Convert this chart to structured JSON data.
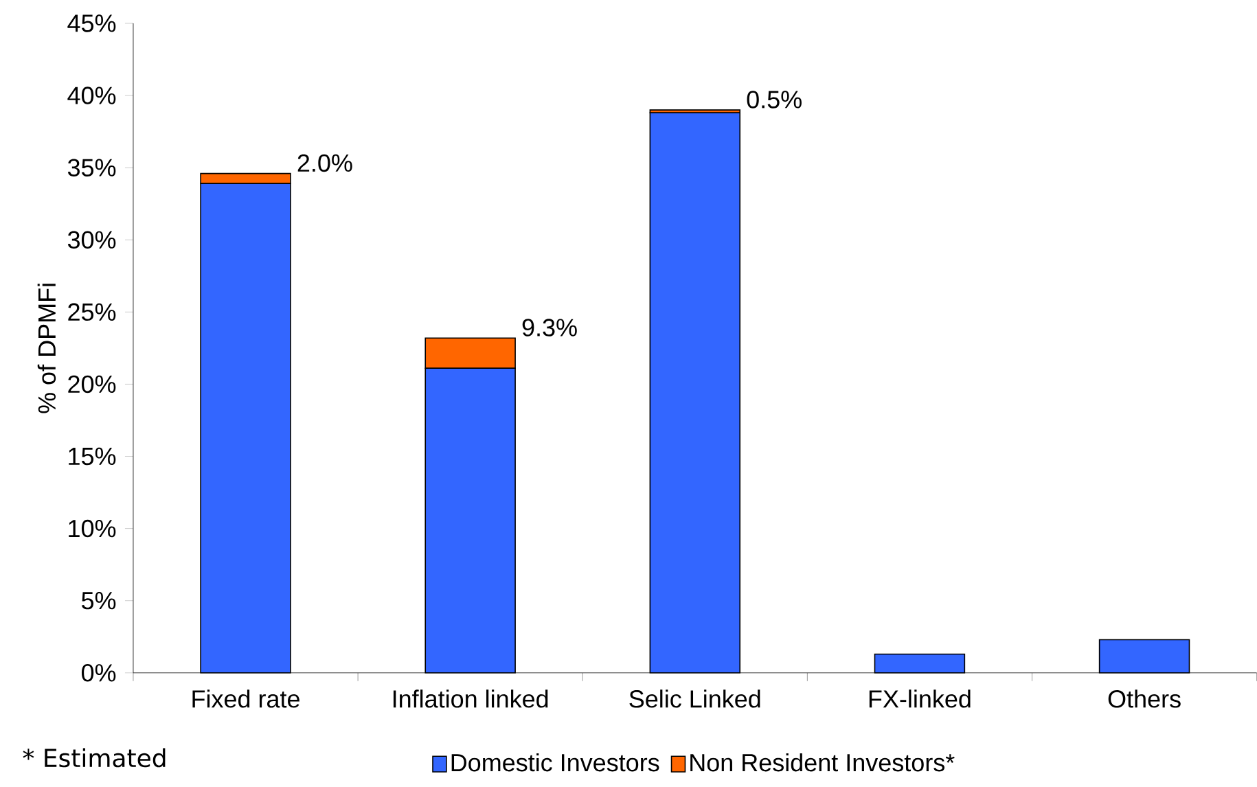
{
  "chart_data": {
    "type": "bar",
    "stacked": true,
    "ylabel": "% of DPMFi",
    "categories": [
      "Fixed rate",
      "Inflation linked",
      "Selic Linked",
      "FX-linked",
      "Others"
    ],
    "series": [
      {
        "name": "Domestic Investors",
        "color": "#3366ff",
        "values": [
          33.9,
          21.1,
          38.8,
          1.3,
          2.3
        ]
      },
      {
        "name": "Non Resident Investors*",
        "color": "#ff6600",
        "values": [
          0.7,
          2.1,
          0.2,
          0,
          0
        ]
      }
    ],
    "ylim": [
      0,
      45
    ],
    "yticks": [
      {
        "value": 0,
        "label": "0%"
      },
      {
        "value": 5,
        "label": "5%"
      },
      {
        "value": 10,
        "label": "10%"
      },
      {
        "value": 15,
        "label": "15%"
      },
      {
        "value": 20,
        "label": "20%"
      },
      {
        "value": 25,
        "label": "25%"
      },
      {
        "value": 30,
        "label": "30%"
      },
      {
        "value": 35,
        "label": "35%"
      },
      {
        "value": 40,
        "label": "40%"
      },
      {
        "value": 45,
        "label": "45%"
      }
    ],
    "annotations": [
      {
        "text": "2.0%",
        "x": "Fixed rate",
        "y": 34.6
      },
      {
        "text": "9.3%",
        "x": "Inflation linked",
        "y": 23.2
      },
      {
        "text": "0.5%",
        "x": "Selic Linked",
        "y": 39.0
      },
      "* Estimated"
    ],
    "legend": "bottom",
    "grid": false
  }
}
